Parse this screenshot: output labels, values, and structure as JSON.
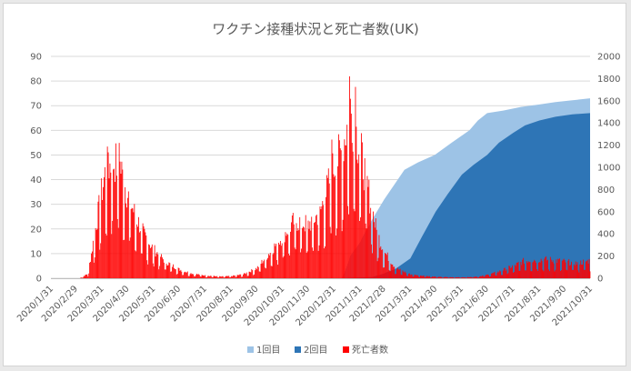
{
  "chart_data": {
    "type": "area",
    "title": "ワクチン接種状況と死亡者数(UK)",
    "x_ticks": [
      "2020/1/31",
      "2020/2/29",
      "2020/3/31",
      "2020/4/30",
      "2020/5/31",
      "2020/6/30",
      "2020/7/31",
      "2020/8/31",
      "2020/9/30",
      "2020/10/31",
      "2020/11/30",
      "2020/12/31",
      "2021/1/31",
      "2021/2/28",
      "2021/3/31",
      "2021/4/30",
      "2021/5/31",
      "2021/6/30",
      "2021/7/31",
      "2021/8/31",
      "2021/9/30",
      "2021/10/31"
    ],
    "y_left_ticks": [
      "0",
      "10",
      "20",
      "30",
      "40",
      "50",
      "60",
      "70",
      "80",
      "90"
    ],
    "y_right_ticks": [
      "0",
      "200",
      "400",
      "600",
      "800",
      "1000",
      "1200",
      "1400",
      "1600",
      "1800",
      "2000"
    ],
    "y_left_range": [
      0,
      90
    ],
    "y_right_range": [
      0,
      2000
    ],
    "legend": [
      "1回目",
      "2回目",
      "死亡者数"
    ],
    "colors": {
      "dose1": "#9dc3e6",
      "dose2": "#2e75b6",
      "deaths": "#ff0000",
      "grid": "#d9d9d9"
    },
    "series": [
      {
        "name": "1回目",
        "axis": "left",
        "type": "area",
        "points": [
          [
            "2021/1/10",
            0
          ],
          [
            "2021/1/20",
            9
          ],
          [
            "2021/2/1",
            15
          ],
          [
            "2021/2/15",
            24
          ],
          [
            "2021/3/1",
            32
          ],
          [
            "2021/3/15",
            39
          ],
          [
            "2021/3/25",
            44
          ],
          [
            "2021/4/10",
            47
          ],
          [
            "2021/4/30",
            50
          ],
          [
            "2021/5/20",
            55
          ],
          [
            "2021/6/10",
            60
          ],
          [
            "2021/6/20",
            64
          ],
          [
            "2021/7/1",
            67
          ],
          [
            "2021/7/20",
            68
          ],
          [
            "2021/8/10",
            69.5
          ],
          [
            "2021/9/1",
            70.5
          ],
          [
            "2021/9/20",
            71.5
          ],
          [
            "2021/10/10",
            72.2
          ],
          [
            "2021/10/31",
            73
          ]
        ]
      },
      {
        "name": "2回目",
        "axis": "left",
        "type": "area",
        "points": [
          [
            "2021/1/10",
            0
          ],
          [
            "2021/2/15",
            0.5
          ],
          [
            "2021/3/1",
            2
          ],
          [
            "2021/3/15",
            4
          ],
          [
            "2021/4/1",
            8
          ],
          [
            "2021/4/15",
            17
          ],
          [
            "2021/5/1",
            27
          ],
          [
            "2021/5/15",
            34
          ],
          [
            "2021/6/1",
            42
          ],
          [
            "2021/6/15",
            46
          ],
          [
            "2021/7/1",
            50
          ],
          [
            "2021/7/15",
            55
          ],
          [
            "2021/8/1",
            59
          ],
          [
            "2021/8/15",
            62
          ],
          [
            "2021/9/1",
            64
          ],
          [
            "2021/9/20",
            65.5
          ],
          [
            "2021/10/10",
            66.5
          ],
          [
            "2021/10/31",
            67
          ]
        ]
      },
      {
        "name": "死亡者数",
        "axis": "right",
        "type": "bar",
        "envelope": [
          [
            "2020/3/5",
            0
          ],
          [
            "2020/3/15",
            40
          ],
          [
            "2020/3/25",
            500
          ],
          [
            "2020/4/5",
            980
          ],
          [
            "2020/4/15",
            1050
          ],
          [
            "2020/4/22",
            1010
          ],
          [
            "2020/5/1",
            750
          ],
          [
            "2020/5/10",
            570
          ],
          [
            "2020/5/20",
            400
          ],
          [
            "2020/6/1",
            260
          ],
          [
            "2020/6/15",
            150
          ],
          [
            "2020/7/1",
            80
          ],
          [
            "2020/7/15",
            45
          ],
          [
            "2020/8/1",
            25
          ],
          [
            "2020/8/20",
            15
          ],
          [
            "2020/9/1",
            20
          ],
          [
            "2020/9/15",
            35
          ],
          [
            "2020/10/1",
            90
          ],
          [
            "2020/10/15",
            220
          ],
          [
            "2020/11/1",
            380
          ],
          [
            "2020/11/15",
            520
          ],
          [
            "2020/12/1",
            480
          ],
          [
            "2020/12/15",
            590
          ],
          [
            "2020/12/31",
            1000
          ],
          [
            "2021/1/10",
            1150
          ],
          [
            "2021/1/20",
            1520
          ],
          [
            "2021/1/31",
            1180
          ],
          [
            "2021/2/10",
            800
          ],
          [
            "2021/2/20",
            420
          ],
          [
            "2021/3/1",
            240
          ],
          [
            "2021/3/15",
            90
          ],
          [
            "2021/4/1",
            35
          ],
          [
            "2021/5/1",
            12
          ],
          [
            "2021/6/1",
            8
          ],
          [
            "2021/6/20",
            15
          ],
          [
            "2021/7/1",
            30
          ],
          [
            "2021/7/15",
            60
          ],
          [
            "2021/8/1",
            110
          ],
          [
            "2021/8/15",
            160
          ],
          [
            "2021/9/1",
            170
          ],
          [
            "2021/9/15",
            165
          ],
          [
            "2021/10/1",
            150
          ],
          [
            "2021/10/15",
            135
          ],
          [
            "2021/10/31",
            160
          ]
        ],
        "peaks": [
          [
            "2020/4/8",
            1135
          ],
          [
            "2020/4/21",
            1220
          ],
          [
            "2020/12/29",
            1250
          ],
          [
            "2021/1/19",
            1820
          ],
          [
            "2021/1/26",
            1725
          ]
        ]
      }
    ]
  }
}
